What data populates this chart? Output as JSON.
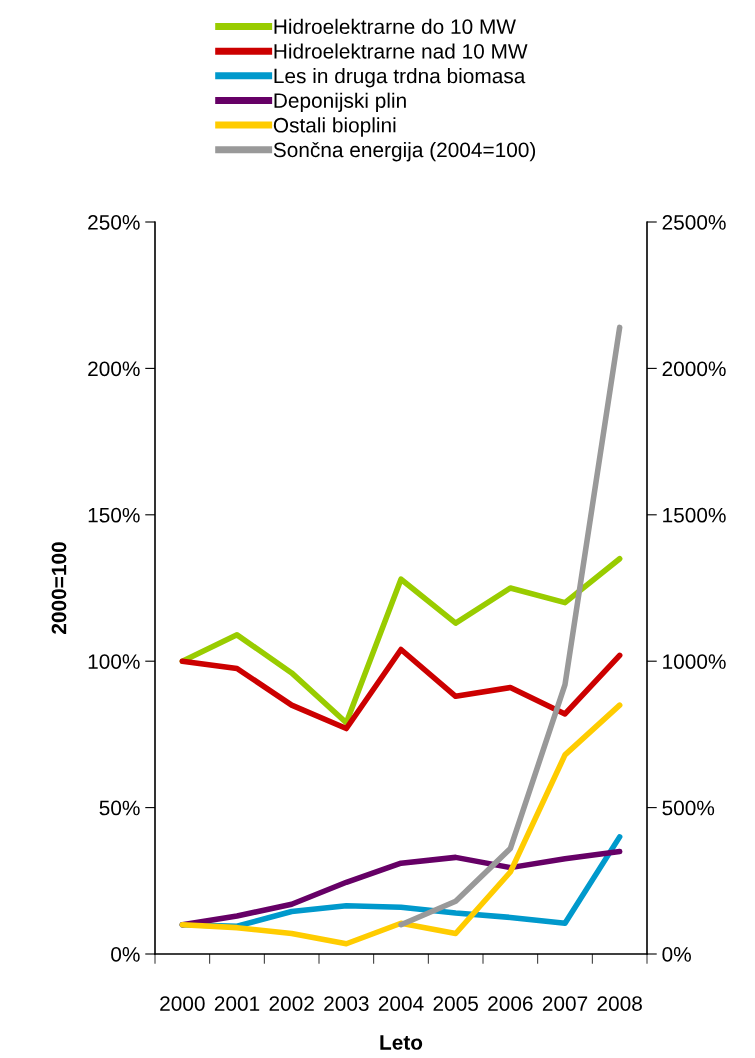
{
  "chart_data": {
    "type": "line",
    "xlabel": "Leto",
    "ylabel": "2000=100",
    "categories": [
      "2000",
      "2001",
      "2002",
      "2003",
      "2004",
      "2005",
      "2006",
      "2007",
      "2008"
    ],
    "series": [
      {
        "name": "Hidroelektrarne do 10 MW",
        "color": "#99cc00",
        "values": [
          100,
          109,
          96,
          79,
          128,
          113,
          125,
          120,
          135
        ]
      },
      {
        "name": "Hidroelektrarne nad 10 MW",
        "color": "#cc0000",
        "values": [
          100,
          97.5,
          85,
          77,
          104,
          88,
          91,
          82,
          102
        ]
      },
      {
        "name": "Les in druga trdna biomasa",
        "color": "#0099cc",
        "values": [
          10,
          9.5,
          14.5,
          16.5,
          16,
          14,
          12.5,
          10.5,
          40
        ]
      },
      {
        "name": "Deponijski plin",
        "color": "#660066",
        "values": [
          10,
          13,
          17,
          24.5,
          31,
          33,
          29.5,
          32.5,
          35
        ]
      },
      {
        "name": "Ostali bioplini",
        "color": "#ffcc00",
        "values": [
          10,
          9,
          7,
          3.5,
          10.5,
          7,
          28,
          68,
          85
        ]
      },
      {
        "name": "Sončna energija (2004=100)",
        "color": "#999999",
        "axis": "y2",
        "values": [
          null,
          null,
          null,
          null,
          100,
          180,
          360,
          920,
          2140
        ]
      }
    ],
    "ylim": [
      0,
      250
    ],
    "yticks": [
      {
        "value": 0,
        "label": "0%"
      },
      {
        "value": 50,
        "label": "50%"
      },
      {
        "value": 100,
        "label": "100%"
      },
      {
        "value": 150,
        "label": "150%"
      },
      {
        "value": 200,
        "label": "200%"
      },
      {
        "value": 250,
        "label": "250%"
      }
    ],
    "y2lim": [
      0,
      2500
    ],
    "y2ticks": [
      {
        "value": 0,
        "label": "0%"
      },
      {
        "value": 500,
        "label": "500%"
      },
      {
        "value": 1000,
        "label": "1000%"
      },
      {
        "value": 1500,
        "label": "1500%"
      },
      {
        "value": 2000,
        "label": "2000%"
      },
      {
        "value": 2500,
        "label": "2500%"
      }
    ],
    "grid": false,
    "legend": "top",
    "marker": "none",
    "line_style": "solid"
  }
}
